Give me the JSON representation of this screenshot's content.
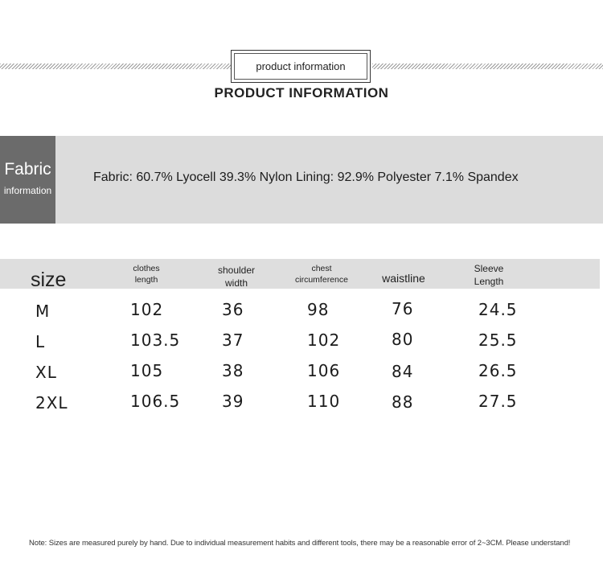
{
  "header": {
    "boxed_title": "product information",
    "main_title": "PRODUCT INFORMATION"
  },
  "fabric": {
    "tag_title": "Fabric",
    "tag_subtitle": "information",
    "description": "Fabric: 60.7% Lyocell 39.3% Nylon Lining: 92.9% Polyester 7.1% Spandex"
  },
  "size_table": {
    "headers": {
      "size": "size",
      "clothes_length": [
        "clothes",
        "length"
      ],
      "shoulder_width": [
        "shoulder",
        "width"
      ],
      "chest_circumference": [
        "chest",
        "circumference"
      ],
      "waistline": "waistline",
      "sleeve_length": [
        "Sleeve",
        "Length"
      ]
    },
    "rows": [
      {
        "size": "M",
        "clothes_length": "102",
        "shoulder_width": "36",
        "chest": "98",
        "waistline": "76",
        "sleeve_length": "24.5"
      },
      {
        "size": "L",
        "clothes_length": "103.5",
        "shoulder_width": "37",
        "chest": "102",
        "waistline": "80",
        "sleeve_length": "25.5"
      },
      {
        "size": "XL",
        "clothes_length": "105",
        "shoulder_width": "38",
        "chest": "106",
        "waistline": "84",
        "sleeve_length": "26.5"
      },
      {
        "size": "2XL",
        "clothes_length": "106.5",
        "shoulder_width": "39",
        "chest": "110",
        "waistline": "88",
        "sleeve_length": "27.5"
      }
    ]
  },
  "note": "Note: Sizes are measured purely by hand. Due to individual measurement habits and different tools, there may be a reasonable error of 2~3CM. Please understand!"
}
